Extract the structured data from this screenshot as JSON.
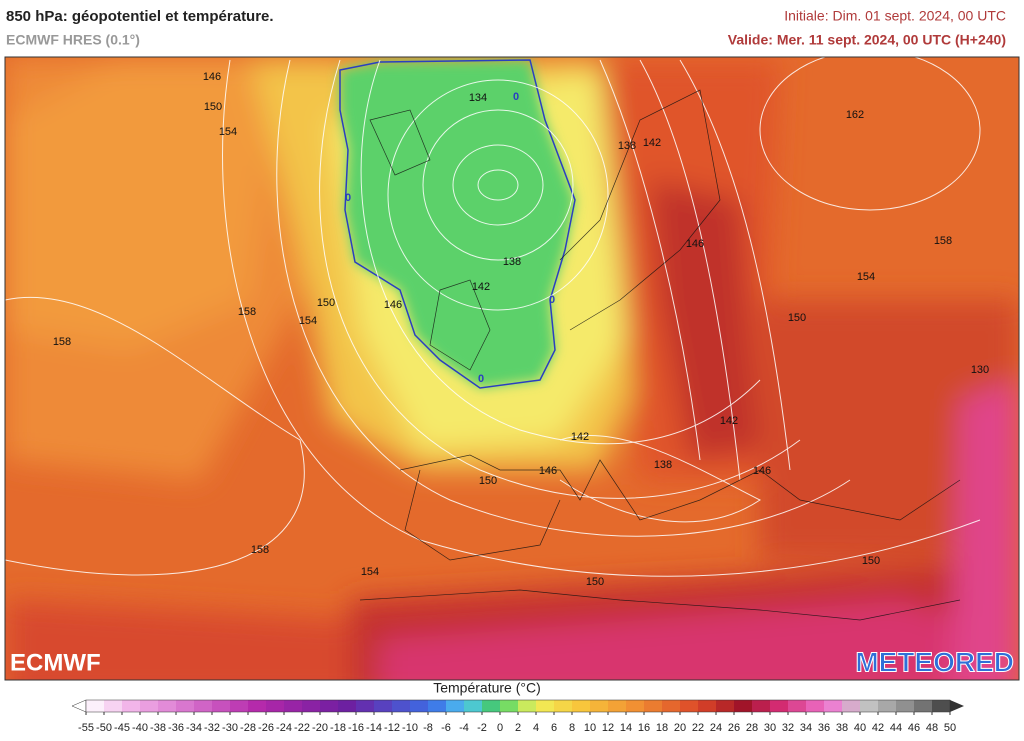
{
  "header": {
    "title": "850 hPa: géopotentiel et température.",
    "subtitle": "ECMWF HRES (0.1°)",
    "initial": "Initiale: Dim. 01 sept. 2024, 00 UTC",
    "valid": "Valide: Mer. 11 sept. 2024, 00 UTC (H+240)"
  },
  "map": {
    "contour_labels": [
      "146",
      "150",
      "154",
      "134",
      "138",
      "142",
      "162",
      "158",
      "146",
      "138",
      "154",
      "142",
      "150",
      "146",
      "158",
      "154",
      "150",
      "158",
      "130",
      "142",
      "142",
      "138",
      "146",
      "146",
      "150",
      "158",
      "150",
      "154",
      "150"
    ],
    "freezing_labels": [
      "0",
      "0",
      "0",
      "0"
    ],
    "logos": [
      "ECMWF",
      "METEORED"
    ]
  },
  "legend": {
    "title": "Température (°C)",
    "ticks": [
      -55,
      -50,
      -45,
      -40,
      -38,
      -36,
      -34,
      -32,
      -30,
      -28,
      -26,
      -24,
      -22,
      -20,
      -18,
      -16,
      -14,
      -12,
      -10,
      -8,
      -6,
      -4,
      -2,
      0,
      2,
      4,
      6,
      8,
      10,
      12,
      14,
      16,
      18,
      20,
      22,
      24,
      26,
      28,
      30,
      32,
      34,
      36,
      38,
      40,
      42,
      44,
      46,
      48,
      50
    ]
  }
}
